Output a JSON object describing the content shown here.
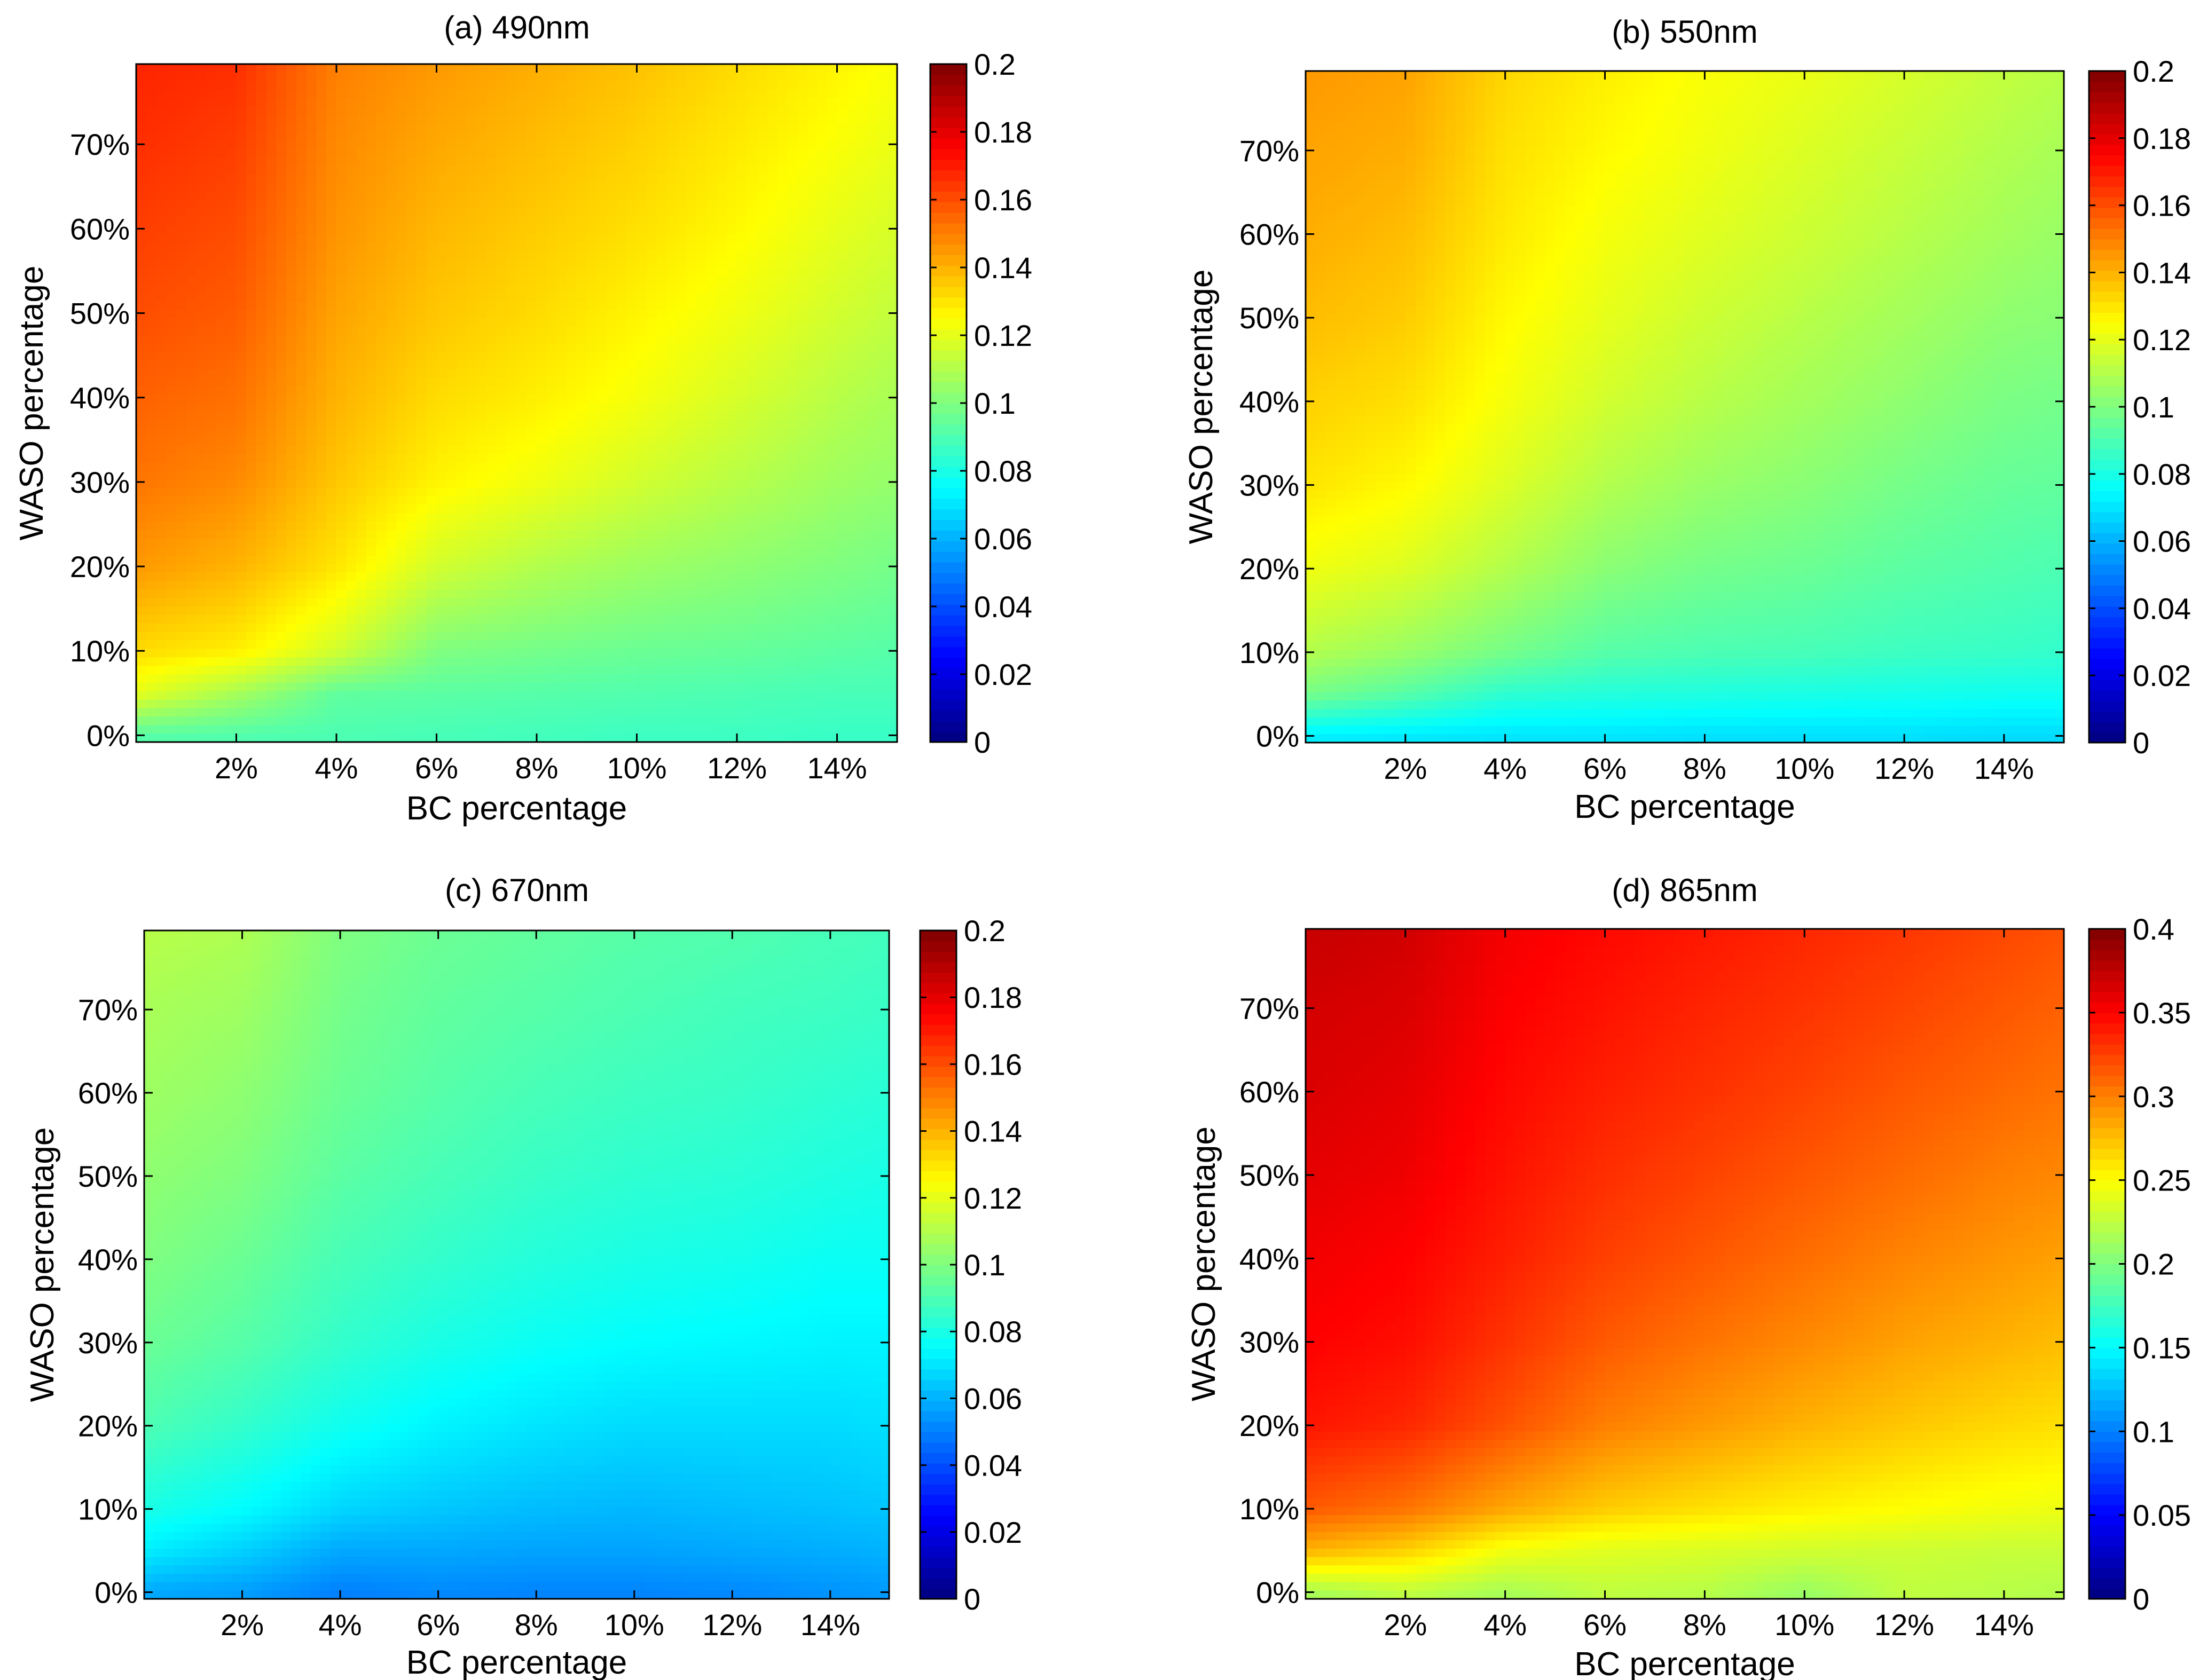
{
  "chart_data": [
    {
      "type": "heatmap",
      "title": "(a) 490nm",
      "xlabel": "BC percentage",
      "ylabel": "WASO percentage",
      "xlim": [
        0,
        15.2
      ],
      "ylim": [
        -0.8,
        79.5
      ],
      "x_ticks": [
        2,
        4,
        6,
        8,
        10,
        12,
        14
      ],
      "x_tick_labels": [
        "2%",
        "4%",
        "6%",
        "8%",
        "10%",
        "12%",
        "14%"
      ],
      "y_ticks": [
        0,
        10,
        20,
        30,
        40,
        50,
        60,
        70
      ],
      "y_tick_labels": [
        "0%",
        "10%",
        "20%",
        "30%",
        "40%",
        "50%",
        "60%",
        "70%"
      ],
      "colorbar": {
        "min": 0,
        "max": 0.2,
        "ticks": [
          0,
          0.02,
          0.04,
          0.06,
          0.08,
          0.1,
          0.12,
          0.14,
          0.16,
          0.18,
          0.2
        ],
        "tick_labels": [
          "0",
          "0.02",
          "0.04",
          "0.06",
          "0.08",
          "0.1",
          "0.12",
          "0.14",
          "0.16",
          "0.18",
          "0.2"
        ]
      },
      "grid_x": [
        0,
        2,
        4,
        6,
        8,
        10,
        12,
        14,
        15.2
      ],
      "grid_y": [
        0,
        5,
        10,
        20,
        30,
        40,
        50,
        60,
        70,
        79.5
      ],
      "values": [
        [
          0.092,
          0.091,
          0.09,
          0.089,
          0.088,
          0.087,
          0.087,
          0.086,
          0.086
        ],
        [
          0.12,
          0.108,
          0.094,
          0.093,
          0.092,
          0.091,
          0.09,
          0.089,
          0.089
        ],
        [
          0.132,
          0.128,
          0.116,
          0.1,
          0.098,
          0.096,
          0.095,
          0.093,
          0.092
        ],
        [
          0.145,
          0.14,
          0.13,
          0.116,
          0.11,
          0.106,
          0.103,
          0.1,
          0.098
        ],
        [
          0.152,
          0.148,
          0.136,
          0.127,
          0.122,
          0.116,
          0.111,
          0.106,
          0.104
        ],
        [
          0.156,
          0.153,
          0.14,
          0.132,
          0.128,
          0.123,
          0.117,
          0.111,
          0.108
        ],
        [
          0.16,
          0.157,
          0.143,
          0.136,
          0.132,
          0.127,
          0.122,
          0.116,
          0.113
        ],
        [
          0.163,
          0.16,
          0.146,
          0.139,
          0.135,
          0.131,
          0.126,
          0.12,
          0.117
        ],
        [
          0.166,
          0.163,
          0.148,
          0.142,
          0.138,
          0.134,
          0.129,
          0.124,
          0.121
        ],
        [
          0.168,
          0.166,
          0.15,
          0.145,
          0.141,
          0.137,
          0.132,
          0.127,
          0.124
        ]
      ]
    },
    {
      "type": "heatmap",
      "title": "(b) 550nm",
      "xlabel": "BC percentage",
      "ylabel": "WASO percentage",
      "xlim": [
        0,
        15.2
      ],
      "ylim": [
        -0.8,
        79.5
      ],
      "x_ticks": [
        2,
        4,
        6,
        8,
        10,
        12,
        14
      ],
      "x_tick_labels": [
        "2%",
        "4%",
        "6%",
        "8%",
        "10%",
        "12%",
        "14%"
      ],
      "y_ticks": [
        0,
        10,
        20,
        30,
        40,
        50,
        60,
        70
      ],
      "y_tick_labels": [
        "0%",
        "10%",
        "20%",
        "30%",
        "40%",
        "50%",
        "60%",
        "70%"
      ],
      "colorbar": {
        "min": 0,
        "max": 0.2,
        "ticks": [
          0,
          0.02,
          0.04,
          0.06,
          0.08,
          0.1,
          0.12,
          0.14,
          0.16,
          0.18,
          0.2
        ],
        "tick_labels": [
          "0",
          "0.02",
          "0.04",
          "0.06",
          "0.08",
          "0.1",
          "0.12",
          "0.14",
          "0.16",
          "0.18",
          "0.2"
        ]
      },
      "grid_x": [
        0,
        2,
        4,
        6,
        8,
        10,
        12,
        14,
        15.2
      ],
      "grid_y": [
        0,
        5,
        10,
        20,
        30,
        40,
        50,
        60,
        70,
        79.5
      ],
      "values": [
        [
          0.072,
          0.071,
          0.07,
          0.07,
          0.069,
          0.069,
          0.069,
          0.068,
          0.068
        ],
        [
          0.098,
          0.092,
          0.084,
          0.082,
          0.081,
          0.08,
          0.079,
          0.078,
          0.078
        ],
        [
          0.11,
          0.105,
          0.098,
          0.092,
          0.09,
          0.089,
          0.087,
          0.086,
          0.085
        ],
        [
          0.122,
          0.118,
          0.11,
          0.102,
          0.098,
          0.096,
          0.093,
          0.091,
          0.09
        ],
        [
          0.13,
          0.126,
          0.118,
          0.11,
          0.105,
          0.102,
          0.098,
          0.095,
          0.094
        ],
        [
          0.134,
          0.131,
          0.123,
          0.116,
          0.111,
          0.107,
          0.103,
          0.099,
          0.098
        ],
        [
          0.138,
          0.135,
          0.126,
          0.12,
          0.115,
          0.111,
          0.107,
          0.103,
          0.102
        ],
        [
          0.141,
          0.138,
          0.129,
          0.123,
          0.119,
          0.115,
          0.111,
          0.107,
          0.105
        ],
        [
          0.143,
          0.141,
          0.131,
          0.126,
          0.122,
          0.118,
          0.114,
          0.11,
          0.108
        ],
        [
          0.145,
          0.143,
          0.133,
          0.128,
          0.124,
          0.121,
          0.117,
          0.113,
          0.111
        ]
      ]
    },
    {
      "type": "heatmap",
      "title": "(c) 670nm",
      "xlabel": "BC percentage",
      "ylabel": "WASO percentage",
      "xlim": [
        0,
        15.2
      ],
      "ylim": [
        -0.8,
        79.5
      ],
      "x_ticks": [
        2,
        4,
        6,
        8,
        10,
        12,
        14
      ],
      "x_tick_labels": [
        "2%",
        "4%",
        "6%",
        "8%",
        "10%",
        "12%",
        "14%"
      ],
      "y_ticks": [
        0,
        10,
        20,
        30,
        40,
        50,
        60,
        70
      ],
      "y_tick_labels": [
        "0%",
        "10%",
        "20%",
        "30%",
        "40%",
        "50%",
        "60%",
        "70%"
      ],
      "colorbar": {
        "min": 0,
        "max": 0.2,
        "ticks": [
          0,
          0.02,
          0.04,
          0.06,
          0.08,
          0.1,
          0.12,
          0.14,
          0.16,
          0.18,
          0.2
        ],
        "tick_labels": [
          "0",
          "0.02",
          "0.04",
          "0.06",
          "0.08",
          "0.1",
          "0.12",
          "0.14",
          "0.16",
          "0.18",
          "0.2"
        ]
      },
      "grid_x": [
        0,
        2,
        4,
        6,
        8,
        10,
        12,
        14,
        15.2
      ],
      "grid_y": [
        0,
        5,
        10,
        20,
        30,
        40,
        50,
        60,
        70,
        79.5
      ],
      "values": [
        [
          0.058,
          0.056,
          0.05,
          0.052,
          0.051,
          0.051,
          0.052,
          0.054,
          0.055
        ],
        [
          0.072,
          0.066,
          0.058,
          0.058,
          0.057,
          0.057,
          0.058,
          0.059,
          0.06
        ],
        [
          0.08,
          0.075,
          0.067,
          0.064,
          0.062,
          0.061,
          0.062,
          0.063,
          0.064
        ],
        [
          0.09,
          0.085,
          0.078,
          0.073,
          0.07,
          0.068,
          0.068,
          0.068,
          0.069
        ],
        [
          0.096,
          0.092,
          0.085,
          0.08,
          0.077,
          0.075,
          0.074,
          0.073,
          0.073
        ],
        [
          0.1,
          0.096,
          0.089,
          0.085,
          0.082,
          0.08,
          0.079,
          0.077,
          0.077
        ],
        [
          0.103,
          0.1,
          0.093,
          0.089,
          0.086,
          0.084,
          0.083,
          0.081,
          0.08
        ],
        [
          0.106,
          0.103,
          0.096,
          0.092,
          0.089,
          0.087,
          0.086,
          0.084,
          0.083
        ],
        [
          0.108,
          0.106,
          0.098,
          0.094,
          0.092,
          0.09,
          0.088,
          0.087,
          0.086
        ],
        [
          0.111,
          0.109,
          0.1,
          0.096,
          0.094,
          0.092,
          0.091,
          0.089,
          0.088
        ]
      ]
    },
    {
      "type": "heatmap",
      "title": "(d) 865nm",
      "xlabel": "BC percentage",
      "ylabel": "WASO percentage",
      "xlim": [
        0,
        15.2
      ],
      "ylim": [
        -0.8,
        79.5
      ],
      "x_ticks": [
        2,
        4,
        6,
        8,
        10,
        12,
        14
      ],
      "x_tick_labels": [
        "2%",
        "4%",
        "6%",
        "8%",
        "10%",
        "12%",
        "14%"
      ],
      "y_ticks": [
        0,
        10,
        20,
        30,
        40,
        50,
        60,
        70
      ],
      "y_tick_labels": [
        "0%",
        "10%",
        "20%",
        "30%",
        "40%",
        "50%",
        "60%",
        "70%"
      ],
      "colorbar": {
        "min": 0,
        "max": 0.4,
        "ticks": [
          0,
          0.05,
          0.1,
          0.15,
          0.2,
          0.25,
          0.3,
          0.35,
          0.4
        ],
        "tick_labels": [
          "0",
          "0.05",
          "0.1",
          "0.15",
          "0.2",
          "0.25",
          "0.3",
          "0.35",
          "0.4"
        ]
      },
      "grid_x": [
        0,
        2,
        4,
        6,
        8,
        10,
        12,
        14,
        15.2
      ],
      "grid_y": [
        0,
        5,
        10,
        20,
        30,
        40,
        50,
        60,
        70,
        79.5
      ],
      "values": [
        [
          0.215,
          0.225,
          0.215,
          0.225,
          0.222,
          0.21,
          0.225,
          0.222,
          0.22
        ],
        [
          0.28,
          0.268,
          0.245,
          0.238,
          0.235,
          0.232,
          0.23,
          0.228,
          0.228
        ],
        [
          0.315,
          0.305,
          0.285,
          0.27,
          0.262,
          0.255,
          0.25,
          0.245,
          0.243
        ],
        [
          0.342,
          0.335,
          0.318,
          0.3,
          0.29,
          0.28,
          0.272,
          0.265,
          0.262
        ],
        [
          0.35,
          0.345,
          0.33,
          0.315,
          0.305,
          0.296,
          0.287,
          0.28,
          0.276
        ],
        [
          0.355,
          0.35,
          0.338,
          0.325,
          0.316,
          0.307,
          0.298,
          0.291,
          0.287
        ],
        [
          0.36,
          0.356,
          0.343,
          0.332,
          0.324,
          0.316,
          0.308,
          0.3,
          0.297
        ],
        [
          0.364,
          0.36,
          0.347,
          0.338,
          0.331,
          0.324,
          0.316,
          0.309,
          0.305
        ],
        [
          0.367,
          0.364,
          0.351,
          0.343,
          0.336,
          0.33,
          0.323,
          0.316,
          0.312
        ],
        [
          0.372,
          0.368,
          0.354,
          0.347,
          0.341,
          0.335,
          0.329,
          0.322,
          0.318
        ]
      ]
    }
  ]
}
